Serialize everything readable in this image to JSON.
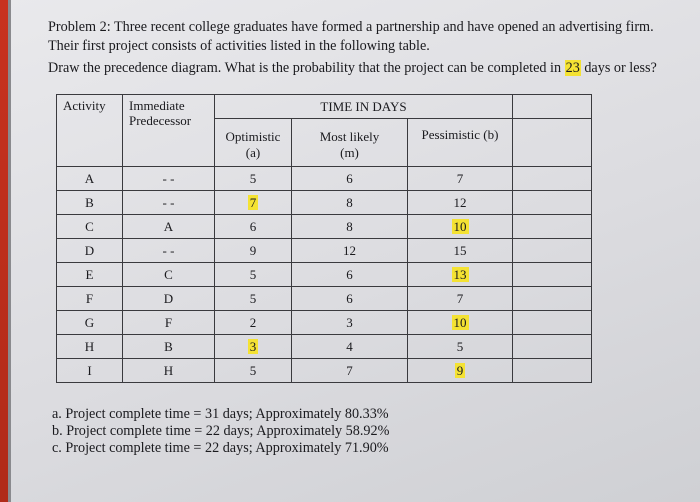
{
  "problem": {
    "line1": "Problem 2: Three recent college graduates have formed a partnership and have opened an advertising firm.",
    "line2": "Their first project consists of activities listed in the following table.",
    "question_prefix": "Draw the precedence diagram. What is the probability that the project can be completed in ",
    "question_days": "23",
    "question_suffix": " days or less?"
  },
  "table": {
    "headers": {
      "activity": "Activity",
      "predecessor_line1": "Immediate",
      "predecessor_line2": "Predecessor",
      "time_group": "TIME IN DAYS",
      "optimistic_line1": "Optimistic",
      "optimistic_line2": "(a)",
      "most_likely_line1": "Most likely",
      "most_likely_line2": "(m)",
      "pessimistic": "Pessimistic (b)"
    },
    "rows": [
      {
        "activity": "A",
        "predecessor": "- -",
        "optimistic": "5",
        "most_likely": "6",
        "pessimistic": "7"
      },
      {
        "activity": "B",
        "predecessor": "- -",
        "optimistic": "7",
        "most_likely": "8",
        "pessimistic": "12"
      },
      {
        "activity": "C",
        "predecessor": "A",
        "optimistic": "6",
        "most_likely": "8",
        "pessimistic": "10"
      },
      {
        "activity": "D",
        "predecessor": "- -",
        "optimistic": "9",
        "most_likely": "12",
        "pessimistic": "15"
      },
      {
        "activity": "E",
        "predecessor": "C",
        "optimistic": "5",
        "most_likely": "6",
        "pessimistic": "13"
      },
      {
        "activity": "F",
        "predecessor": "D",
        "optimistic": "5",
        "most_likely": "6",
        "pessimistic": "7"
      },
      {
        "activity": "G",
        "predecessor": "F",
        "optimistic": "2",
        "most_likely": "3",
        "pessimistic": "10"
      },
      {
        "activity": "H",
        "predecessor": "B",
        "optimistic": "3",
        "most_likely": "4",
        "pessimistic": "5"
      },
      {
        "activity": "I",
        "predecessor": "H",
        "optimistic": "5",
        "most_likely": "7",
        "pessimistic": "9"
      }
    ]
  },
  "answers": [
    "a. Project complete time = 31 days; Approximately 80.33%",
    "b. Project complete time = 22 days; Approximately 58.92%",
    "c. Project complete time = 22 days; Approximately 71.90%"
  ],
  "colors": {
    "highlight": "#f4e233",
    "edge_strip": "#c8321f",
    "ink": "#1a1a1e"
  }
}
